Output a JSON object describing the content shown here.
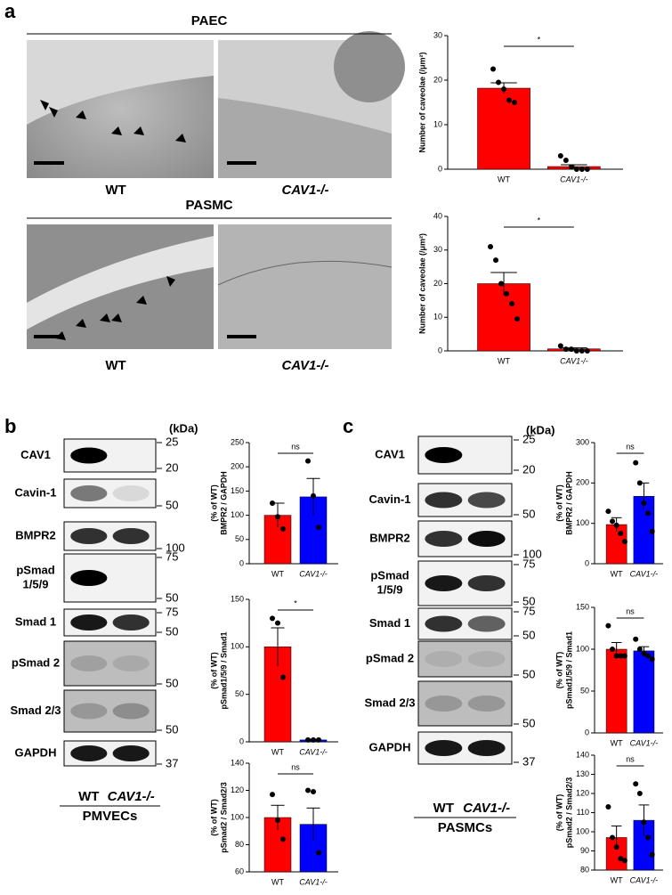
{
  "figure": {
    "a": {
      "label": "a",
      "titles": [
        "PAEC",
        "PASMC"
      ],
      "captions": [
        "WT",
        "CAV1-/-",
        "WT",
        "CAV1-/-"
      ]
    },
    "b": {
      "label": "b",
      "kda": "(kDa)",
      "rows": [
        [
          "CAV1"
        ],
        [
          "Cavin-1"
        ],
        [
          "BMPR2"
        ],
        [
          "pSmad",
          "1/5/9"
        ],
        [
          "Smad 1"
        ],
        [
          "pSmad 2"
        ],
        [
          "Smad 2/3"
        ],
        [
          "GAPDH"
        ]
      ],
      "markers": [
        [
          25,
          20
        ],
        [
          50
        ],
        [
          100
        ],
        [
          75,
          50
        ],
        [
          75,
          50
        ],
        [
          50
        ],
        [
          50
        ],
        [
          37
        ]
      ],
      "lanes": [
        "WT",
        "CAV1-/-"
      ],
      "cells": "PMVECs"
    },
    "c": {
      "label": "c",
      "kda": "(kDa)",
      "rows": [
        [
          "CAV1"
        ],
        [
          "Cavin-1"
        ],
        [
          "BMPR2"
        ],
        [
          "pSmad",
          "1/5/9"
        ],
        [
          "Smad 1"
        ],
        [
          "pSmad 2"
        ],
        [
          "Smad 2/3"
        ],
        [
          "GAPDH"
        ]
      ],
      "markers": [
        [
          25,
          20
        ],
        [
          50
        ],
        [
          100
        ],
        [
          75,
          50
        ],
        [
          75,
          50
        ],
        [
          50
        ],
        [
          50
        ],
        [
          37
        ]
      ],
      "lanes": [
        "WT",
        "CAV1-/-"
      ],
      "cells": "PASMCs"
    }
  },
  "chart_data": [
    {
      "type": "bar",
      "ylabel": [
        "Number of caveolae (/μm²)"
      ],
      "categories": [
        "WT",
        "CAV1-/-"
      ],
      "colors": [
        "#ff0000",
        "#ff0000"
      ],
      "values": [
        18.2,
        0.6
      ],
      "errors": [
        1.2,
        0.4
      ],
      "points": [
        [
          22.5,
          19.5,
          18,
          15.5,
          15
        ],
        [
          3,
          2,
          0.5,
          0,
          0,
          0
        ]
      ],
      "ylim": [
        0,
        30
      ],
      "yticks": [
        0,
        10,
        20,
        30
      ],
      "significance": "*"
    },
    {
      "type": "bar",
      "ylabel": [
        "Number of caveolae (/μm²)"
      ],
      "categories": [
        "WT",
        "CAV1-/-"
      ],
      "colors": [
        "#ff0000",
        "#ff0000"
      ],
      "values": [
        20,
        0.6
      ],
      "errors": [
        3.3,
        0.3
      ],
      "points": [
        [
          31,
          27,
          20,
          17,
          14,
          9.5
        ],
        [
          1.5,
          0.5,
          0.5,
          0,
          0,
          0
        ]
      ],
      "ylim": [
        0,
        40
      ],
      "yticks": [
        0,
        10,
        20,
        30,
        40
      ],
      "significance": "*"
    },
    {
      "type": "bar",
      "ylabel": [
        "BMPR2 / GAPDH",
        "(% of WT)"
      ],
      "categories": [
        "WT",
        "CAV1-/-"
      ],
      "colors": [
        "#ff0000",
        "#0000ff"
      ],
      "values": [
        100,
        138
      ],
      "errors": [
        25,
        38
      ],
      "points": [
        [
          125,
          97,
          72
        ],
        [
          212,
          140,
          75
        ]
      ],
      "ylim": [
        0,
        250
      ],
      "yticks": [
        0,
        50,
        100,
        150,
        200,
        250
      ],
      "significance": "ns"
    },
    {
      "type": "bar",
      "ylabel": [
        "pSmad1/5/9 / Smad1",
        "(% of WT)"
      ],
      "categories": [
        "WT",
        "CAV1-/-"
      ],
      "colors": [
        "#ff0000",
        "#0000ff"
      ],
      "values": [
        100,
        2
      ],
      "errors": [
        20,
        0.5
      ],
      "points": [
        [
          130,
          125,
          68
        ],
        [
          2,
          2,
          2
        ]
      ],
      "ylim": [
        0,
        150
      ],
      "yticks": [
        0,
        50,
        100,
        150
      ],
      "significance": "*"
    },
    {
      "type": "bar",
      "ylabel": [
        "pSmad2 / Smad2/3",
        "(% of WT)"
      ],
      "categories": [
        "WT",
        "CAV1-/-"
      ],
      "colors": [
        "#ff0000",
        "#0000ff"
      ],
      "values": [
        100,
        95
      ],
      "errors": [
        9,
        12
      ],
      "points": [
        [
          117,
          98,
          84
        ],
        [
          120,
          119,
          74
        ]
      ],
      "ylim": [
        60,
        140
      ],
      "yticks": [
        60,
        80,
        100,
        120,
        140
      ],
      "significance": "ns"
    },
    {
      "type": "bar",
      "ylabel": [
        "BMPR2 / GAPDH",
        "(% of WT)"
      ],
      "categories": [
        "WT",
        "CAV1-/-"
      ],
      "colors": [
        "#ff0000",
        "#0000ff"
      ],
      "values": [
        97,
        167
      ],
      "errors": [
        17,
        33
      ],
      "points": [
        [
          130,
          105,
          95,
          75,
          55
        ],
        [
          250,
          200,
          150,
          125,
          80
        ]
      ],
      "ylim": [
        0,
        300
      ],
      "yticks": [
        0,
        100,
        200,
        300
      ],
      "significance": "ns"
    },
    {
      "type": "bar",
      "ylabel": [
        "pSmad1/5/9 / Smad1",
        "(% of WT)"
      ],
      "categories": [
        "WT",
        "CAV1-/-"
      ],
      "colors": [
        "#ff0000",
        "#0000ff"
      ],
      "values": [
        100,
        98
      ],
      "errors": [
        8,
        5
      ],
      "points": [
        [
          128,
          100,
          92,
          92,
          92
        ],
        [
          112,
          100,
          95,
          92,
          88
        ]
      ],
      "ylim": [
        0,
        150
      ],
      "yticks": [
        0,
        50,
        100,
        150
      ],
      "significance": "ns"
    },
    {
      "type": "bar",
      "ylabel": [
        "pSmad2 / Smad2/3",
        "(% of WT)"
      ],
      "categories": [
        "WT",
        "CAV1-/-"
      ],
      "colors": [
        "#ff0000",
        "#0000ff"
      ],
      "values": [
        97,
        106
      ],
      "errors": [
        6,
        8
      ],
      "points": [
        [
          113,
          97,
          92,
          86,
          85
        ],
        [
          125,
          120,
          105,
          97,
          88
        ]
      ],
      "ylim": [
        80,
        140
      ],
      "yticks": [
        80,
        90,
        100,
        110,
        120,
        130,
        140
      ],
      "significance": "ns"
    }
  ]
}
